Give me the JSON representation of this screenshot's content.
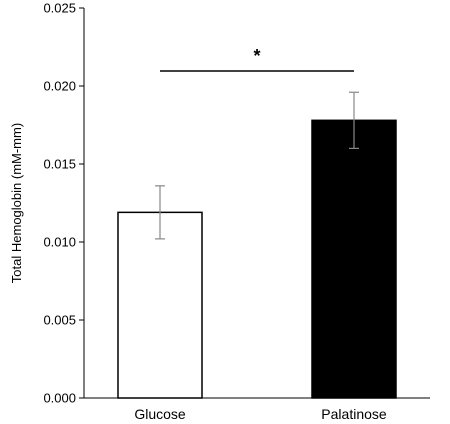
{
  "chart_data": {
    "type": "bar",
    "categories": [
      "Glucose",
      "Palatinose"
    ],
    "values": [
      0.0119,
      0.0178
    ],
    "error": [
      0.0017,
      0.0018
    ],
    "bar_fills": [
      "#ffffff",
      "#000000"
    ],
    "ylabel": "Total Hemoglobin (mM-mm)",
    "ylim": [
      0,
      0.025
    ],
    "yticks": [
      "0.000",
      "0.005",
      "0.010",
      "0.015",
      "0.020",
      "0.025"
    ],
    "significance": {
      "label": "*",
      "between": [
        "Glucose",
        "Palatinose"
      ]
    },
    "grid": false
  }
}
